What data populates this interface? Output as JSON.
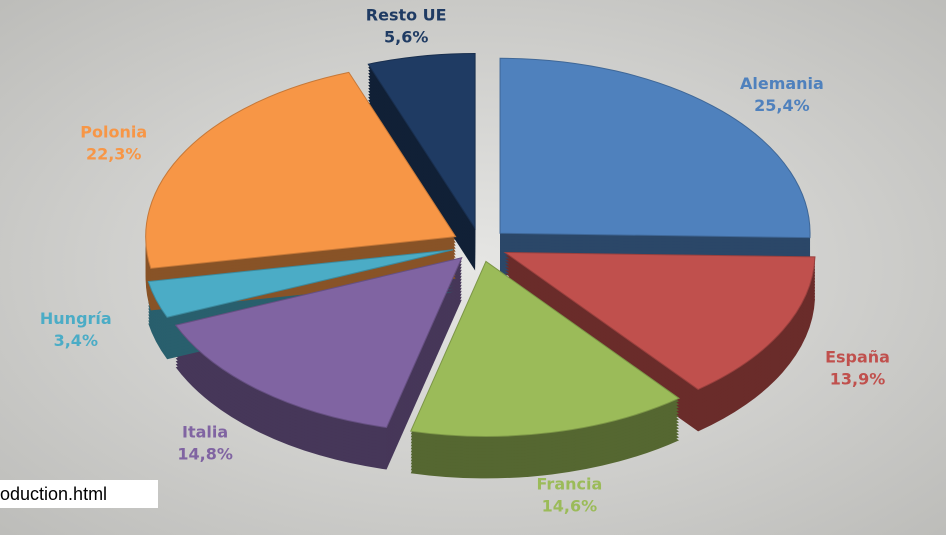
{
  "chart_data": {
    "type": "pie3d",
    "categories": [
      "Alemania",
      "España",
      "Francia",
      "Italia",
      "Hungría",
      "Polonia",
      "Resto UE"
    ],
    "values": [
      25.4,
      13.9,
      14.6,
      14.8,
      3.4,
      22.3,
      5.6
    ],
    "value_labels": [
      "25,4%",
      "13,9%",
      "14,6%",
      "14,8%",
      "3,4%",
      "22,3%",
      "5,6%"
    ],
    "colors": [
      "#4f81bd",
      "#c0504d",
      "#9bbb59",
      "#8064a2",
      "#4bacc6",
      "#f79646",
      "#1f3b63"
    ]
  },
  "overlay_text": "oduction.html"
}
